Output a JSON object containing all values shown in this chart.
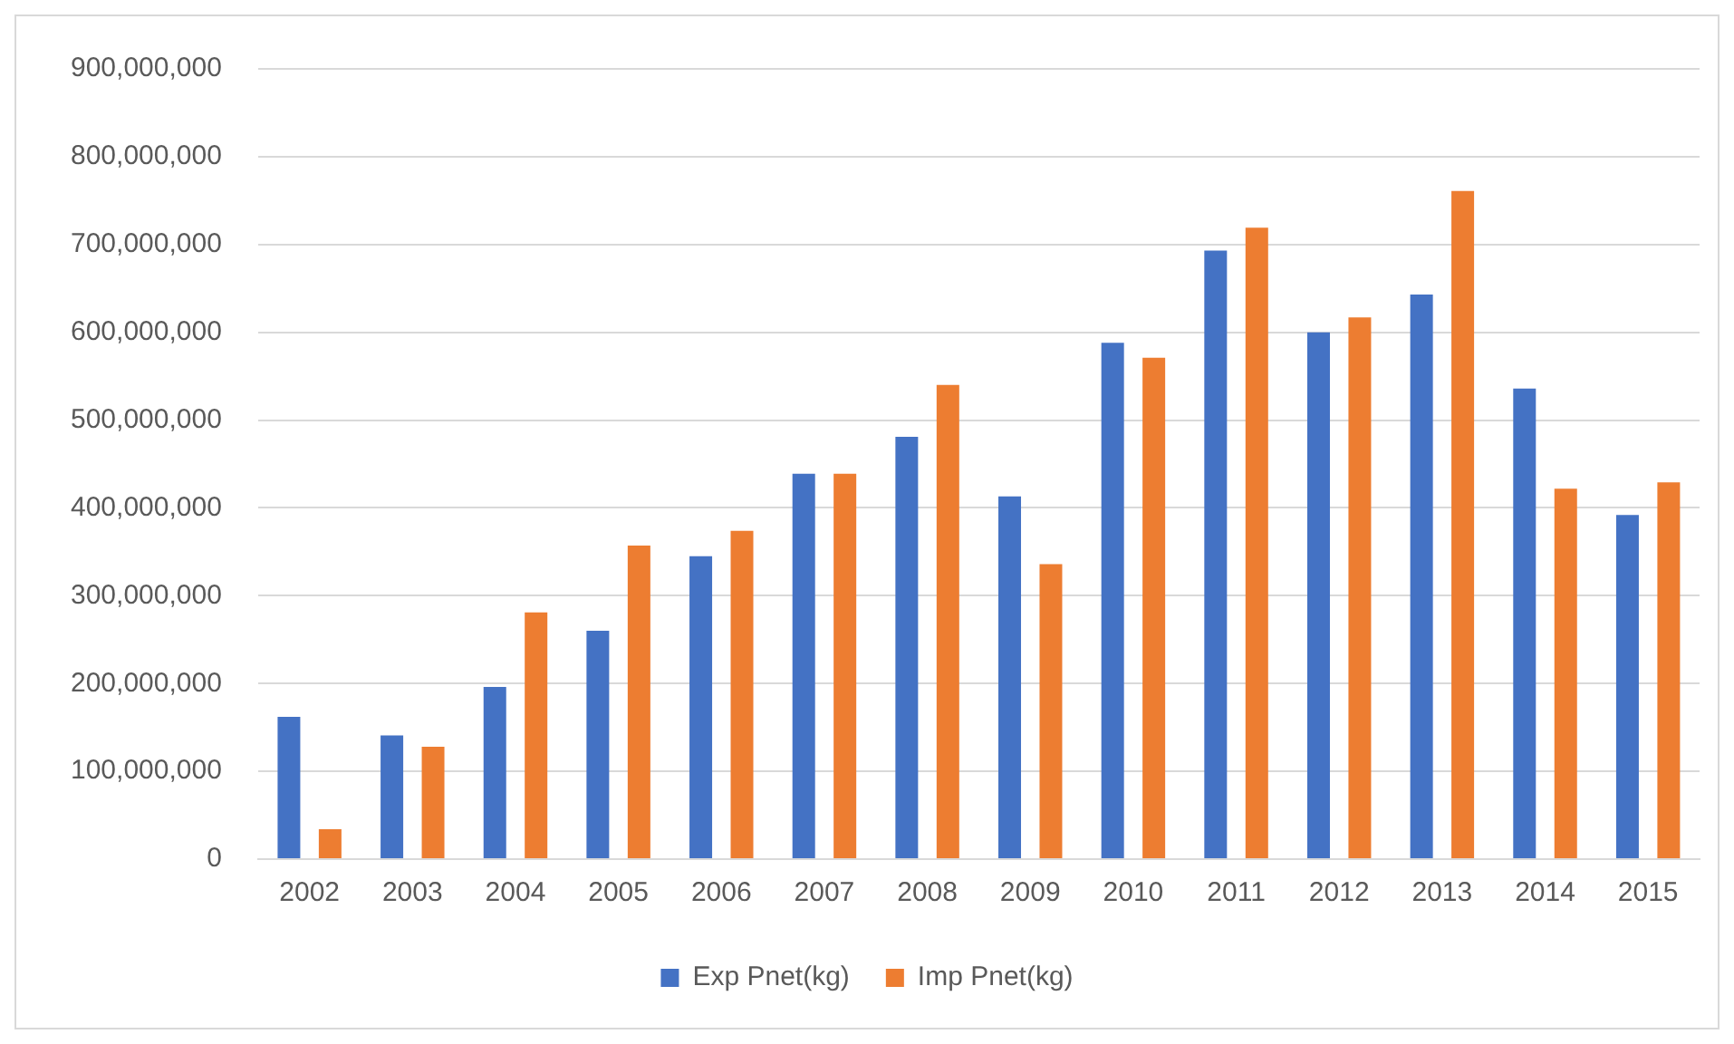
{
  "chart_data": {
    "type": "bar",
    "categories": [
      "2002",
      "2003",
      "2004",
      "2005",
      "2006",
      "2007",
      "2008",
      "2009",
      "2010",
      "2011",
      "2012",
      "2013",
      "2014",
      "2015"
    ],
    "series": [
      {
        "name": "Exp Pnet(kg)",
        "color": "#4472c4",
        "values": [
          162000000,
          141000000,
          196000000,
          260000000,
          345000000,
          439000000,
          481000000,
          413000000,
          588000000,
          693000000,
          600000000,
          643000000,
          536000000,
          392000000
        ]
      },
      {
        "name": "Imp Pnet(kg)",
        "color": "#ed7d31",
        "values": [
          34000000,
          128000000,
          281000000,
          357000000,
          374000000,
          439000000,
          540000000,
          336000000,
          571000000,
          719000000,
          617000000,
          761000000,
          422000000,
          429000000
        ]
      }
    ],
    "ylim": [
      0,
      900000000
    ],
    "yticks": [
      {
        "value": 0,
        "label": "0"
      },
      {
        "value": 100000000,
        "label": "100,000,000"
      },
      {
        "value": 200000000,
        "label": "200,000,000"
      },
      {
        "value": 300000000,
        "label": "300,000,000"
      },
      {
        "value": 400000000,
        "label": "400,000,000"
      },
      {
        "value": 500000000,
        "label": "500,000,000"
      },
      {
        "value": 600000000,
        "label": "600,000,000"
      },
      {
        "value": 700000000,
        "label": "700,000,000"
      },
      {
        "value": 800000000,
        "label": "800,000,000"
      },
      {
        "value": 900000000,
        "label": "900,000,000"
      }
    ],
    "grid": "y",
    "legend": "bottom"
  }
}
